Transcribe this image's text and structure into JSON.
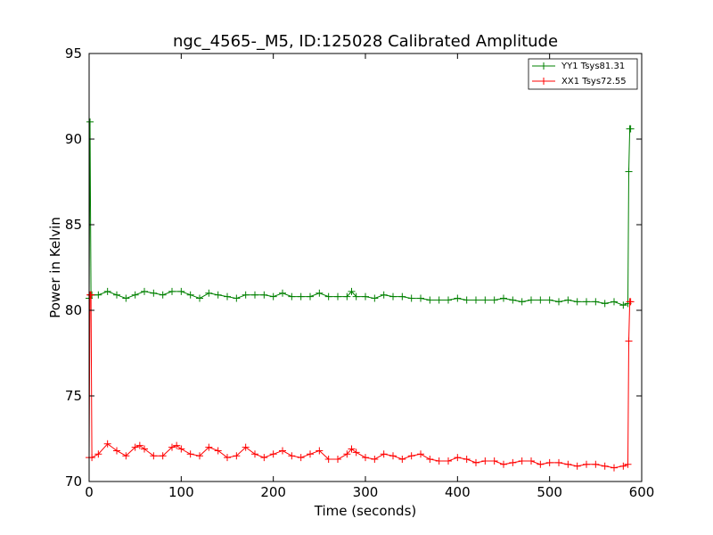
{
  "chart_data": {
    "type": "line",
    "title": "ngc_4565-_M5, ID:125028 Calibrated Amplitude",
    "xlabel": "Time (seconds)",
    "ylabel": "Power in Kelvin",
    "xlim": [
      0,
      600
    ],
    "ylim": [
      70,
      95
    ],
    "xticks": [
      0,
      100,
      200,
      300,
      400,
      500,
      600
    ],
    "yticks": [
      70,
      75,
      80,
      85,
      90,
      95
    ],
    "grid": false,
    "legend_position": "top-right",
    "series": [
      {
        "name": "YY1 Tsys81.31",
        "color": "#008000",
        "points": [
          [
            0,
            80.7
          ],
          [
            1,
            91.0
          ],
          [
            2,
            80.9
          ],
          [
            3,
            80.9
          ],
          [
            10,
            80.9
          ],
          [
            20,
            81.1
          ],
          [
            30,
            80.9
          ],
          [
            40,
            80.7
          ],
          [
            50,
            80.9
          ],
          [
            60,
            81.1
          ],
          [
            70,
            81.0
          ],
          [
            80,
            80.9
          ],
          [
            90,
            81.1
          ],
          [
            100,
            81.1
          ],
          [
            110,
            80.9
          ],
          [
            120,
            80.7
          ],
          [
            130,
            81.0
          ],
          [
            140,
            80.9
          ],
          [
            150,
            80.8
          ],
          [
            160,
            80.7
          ],
          [
            170,
            80.9
          ],
          [
            180,
            80.9
          ],
          [
            190,
            80.9
          ],
          [
            200,
            80.8
          ],
          [
            210,
            81.0
          ],
          [
            220,
            80.8
          ],
          [
            230,
            80.8
          ],
          [
            240,
            80.8
          ],
          [
            250,
            81.0
          ],
          [
            260,
            80.8
          ],
          [
            270,
            80.8
          ],
          [
            280,
            80.8
          ],
          [
            285,
            81.1
          ],
          [
            290,
            80.8
          ],
          [
            300,
            80.8
          ],
          [
            310,
            80.7
          ],
          [
            320,
            80.9
          ],
          [
            330,
            80.8
          ],
          [
            340,
            80.8
          ],
          [
            350,
            80.7
          ],
          [
            360,
            80.7
          ],
          [
            370,
            80.6
          ],
          [
            380,
            80.6
          ],
          [
            390,
            80.6
          ],
          [
            400,
            80.7
          ],
          [
            410,
            80.6
          ],
          [
            420,
            80.6
          ],
          [
            430,
            80.6
          ],
          [
            440,
            80.6
          ],
          [
            450,
            80.7
          ],
          [
            460,
            80.6
          ],
          [
            470,
            80.5
          ],
          [
            480,
            80.6
          ],
          [
            490,
            80.6
          ],
          [
            500,
            80.6
          ],
          [
            510,
            80.5
          ],
          [
            520,
            80.6
          ],
          [
            530,
            80.5
          ],
          [
            540,
            80.5
          ],
          [
            550,
            80.5
          ],
          [
            560,
            80.4
          ],
          [
            570,
            80.5
          ],
          [
            580,
            80.3
          ],
          [
            585,
            80.4
          ],
          [
            586,
            88.1
          ],
          [
            587,
            90.6
          ],
          [
            588,
            90.6
          ]
        ]
      },
      {
        "name": "XX1 Tsys72.55",
        "color": "#ff0000",
        "points": [
          [
            0,
            71.4
          ],
          [
            1,
            80.9
          ],
          [
            2,
            80.9
          ],
          [
            3,
            71.4
          ],
          [
            10,
            71.6
          ],
          [
            20,
            72.2
          ],
          [
            30,
            71.8
          ],
          [
            40,
            71.5
          ],
          [
            50,
            72.0
          ],
          [
            55,
            72.1
          ],
          [
            60,
            71.9
          ],
          [
            70,
            71.5
          ],
          [
            80,
            71.5
          ],
          [
            90,
            72.0
          ],
          [
            95,
            72.1
          ],
          [
            100,
            71.9
          ],
          [
            110,
            71.6
          ],
          [
            120,
            71.5
          ],
          [
            130,
            72.0
          ],
          [
            140,
            71.8
          ],
          [
            150,
            71.4
          ],
          [
            160,
            71.5
          ],
          [
            170,
            72.0
          ],
          [
            180,
            71.6
          ],
          [
            190,
            71.4
          ],
          [
            200,
            71.6
          ],
          [
            210,
            71.8
          ],
          [
            220,
            71.5
          ],
          [
            230,
            71.4
          ],
          [
            240,
            71.6
          ],
          [
            250,
            71.8
          ],
          [
            260,
            71.3
          ],
          [
            270,
            71.3
          ],
          [
            280,
            71.6
          ],
          [
            285,
            71.9
          ],
          [
            290,
            71.7
          ],
          [
            300,
            71.4
          ],
          [
            310,
            71.3
          ],
          [
            320,
            71.6
          ],
          [
            330,
            71.5
          ],
          [
            340,
            71.3
          ],
          [
            350,
            71.5
          ],
          [
            360,
            71.6
          ],
          [
            370,
            71.3
          ],
          [
            380,
            71.2
          ],
          [
            390,
            71.2
          ],
          [
            400,
            71.4
          ],
          [
            410,
            71.3
          ],
          [
            420,
            71.1
          ],
          [
            430,
            71.2
          ],
          [
            440,
            71.2
          ],
          [
            450,
            71.0
          ],
          [
            460,
            71.1
          ],
          [
            470,
            71.2
          ],
          [
            480,
            71.2
          ],
          [
            490,
            71.0
          ],
          [
            500,
            71.1
          ],
          [
            510,
            71.1
          ],
          [
            520,
            71.0
          ],
          [
            530,
            70.9
          ],
          [
            540,
            71.0
          ],
          [
            550,
            71.0
          ],
          [
            560,
            70.9
          ],
          [
            570,
            70.8
          ],
          [
            580,
            70.9
          ],
          [
            585,
            71.0
          ],
          [
            586,
            78.2
          ],
          [
            587,
            80.5
          ],
          [
            588,
            80.5
          ]
        ]
      }
    ]
  }
}
